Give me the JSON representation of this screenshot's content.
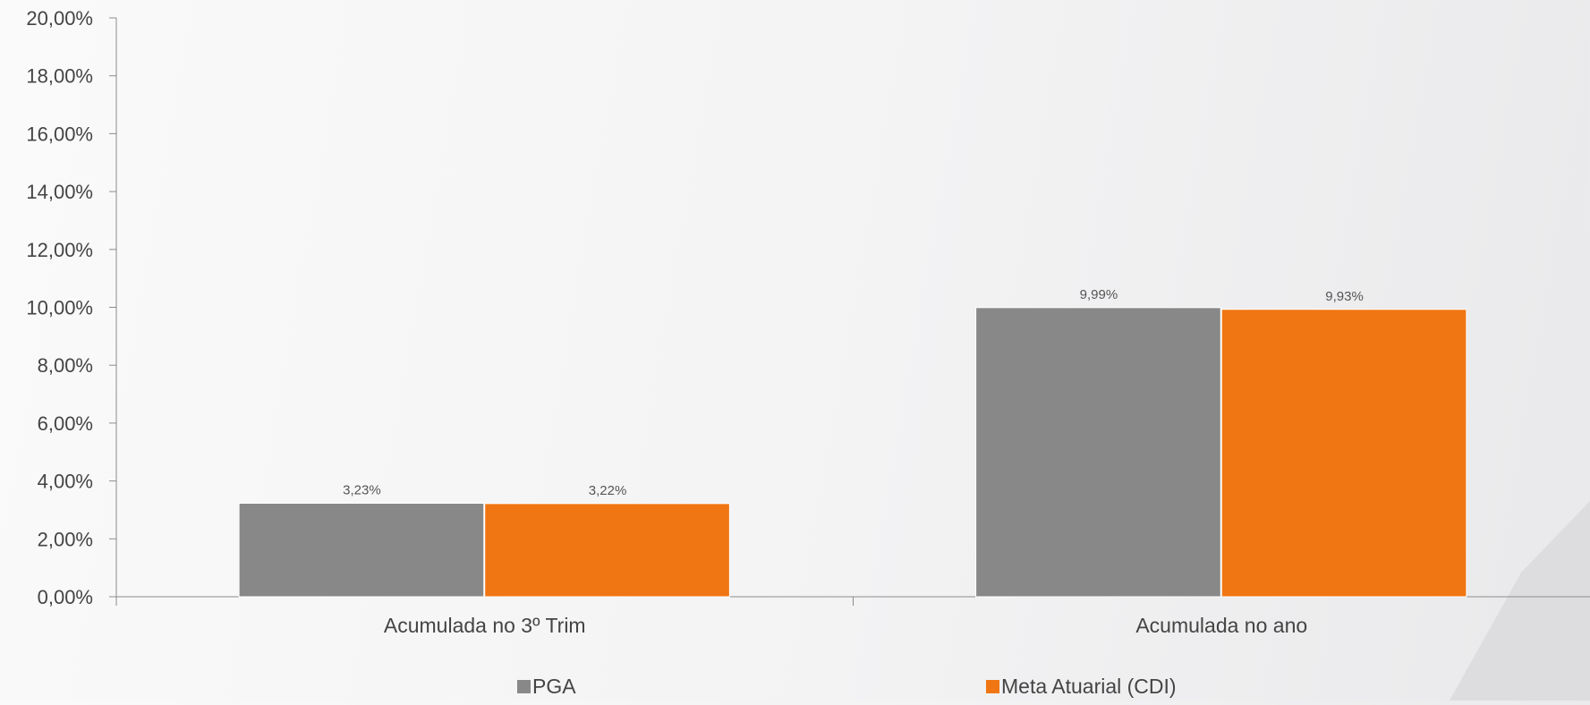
{
  "chart_data": {
    "type": "bar",
    "categories": [
      "Acumulada no 3º Trim",
      "Acumulada no ano"
    ],
    "series": [
      {
        "name": "PGA",
        "values": [
          3.23,
          9.99
        ],
        "labels": [
          "3,23%",
          "9,99%"
        ],
        "color": "#888888"
      },
      {
        "name": "Meta Atuarial (CDI)",
        "values": [
          3.22,
          9.93
        ],
        "labels": [
          "3,22%",
          "9,93%"
        ],
        "color": "#f07613"
      }
    ],
    "ylim": [
      0,
      20
    ],
    "yticks": [
      "0,00%",
      "2,00%",
      "4,00%",
      "6,00%",
      "8,00%",
      "10,00%",
      "12,00%",
      "14,00%",
      "16,00%",
      "18,00%",
      "20,00%"
    ],
    "grid": false,
    "legend_position": "bottom"
  },
  "colors": {
    "axis": "#8c8c8c",
    "text": "#444444",
    "label_text": "#555555"
  }
}
